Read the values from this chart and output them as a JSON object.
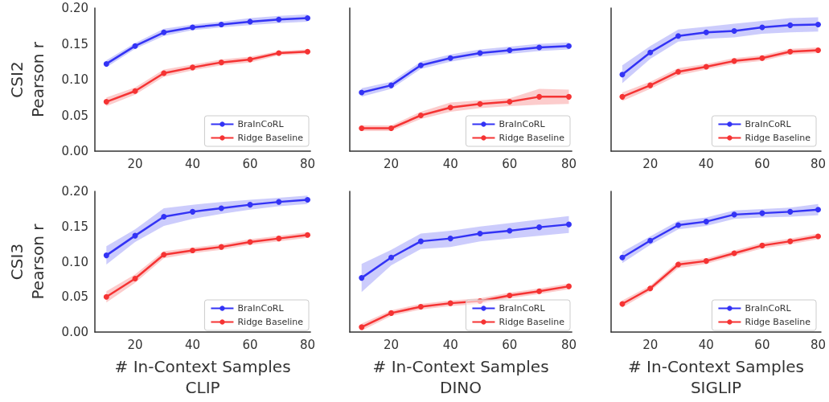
{
  "chart_data": [
    {
      "type": "line",
      "ylabel": "CSI2\nPearson r",
      "x": [
        10,
        20,
        30,
        40,
        50,
        60,
        70,
        80
      ],
      "xlim": [
        6,
        81
      ],
      "xticks": [
        20,
        40,
        60,
        80
      ],
      "ylim": [
        0,
        0.2
      ],
      "yticks": [
        {
          "value": 0,
          "label": "0.00"
        },
        0.05,
        {
          "value": 0.1,
          "label": "0.10"
        },
        0.15,
        {
          "value": 0.2,
          "label": "0.20"
        }
      ],
      "legend": "bottom right",
      "marker": "circle",
      "grid": false,
      "series": [
        {
          "name": "BraInCoRL",
          "color": "#3333f5",
          "values": [
            0.122,
            0.147,
            0.166,
            0.173,
            0.177,
            0.181,
            0.184,
            0.186
          ],
          "lower": [
            0.117,
            0.143,
            0.161,
            0.169,
            0.173,
            0.176,
            0.179,
            0.181
          ],
          "upper": [
            0.127,
            0.151,
            0.171,
            0.177,
            0.181,
            0.186,
            0.189,
            0.191
          ]
        },
        {
          "name": "Ridge Baseline",
          "color": "#f53333",
          "values": [
            0.069,
            0.084,
            0.109,
            0.117,
            0.124,
            0.128,
            0.137,
            0.139
          ],
          "lower": [
            0.063,
            0.079,
            0.104,
            0.113,
            0.12,
            0.124,
            0.134,
            0.136
          ],
          "upper": [
            0.075,
            0.089,
            0.114,
            0.121,
            0.128,
            0.132,
            0.14,
            0.142
          ]
        }
      ]
    },
    {
      "type": "line",
      "x": [
        10,
        20,
        30,
        40,
        50,
        60,
        70,
        80
      ],
      "xlim": [
        6,
        81
      ],
      "xticks": [
        20,
        40,
        60,
        80
      ],
      "ylim": [
        0,
        0.2
      ],
      "yticks": [
        0,
        0.05,
        0.1,
        0.15,
        0.2
      ],
      "tick_labels": "x",
      "legend": "bottom right",
      "marker": "circle",
      "grid": false,
      "series": [
        {
          "name": "BraInCoRL",
          "color": "#3333f5",
          "values": [
            0.082,
            0.092,
            0.12,
            0.13,
            0.137,
            0.141,
            0.145,
            0.147
          ],
          "lower": [
            0.076,
            0.087,
            0.115,
            0.125,
            0.132,
            0.136,
            0.14,
            0.142
          ],
          "upper": [
            0.088,
            0.097,
            0.125,
            0.135,
            0.142,
            0.146,
            0.15,
            0.152
          ]
        },
        {
          "name": "Ridge Baseline",
          "color": "#f53333",
          "values": [
            0.032,
            0.032,
            0.05,
            0.061,
            0.066,
            0.069,
            0.076,
            0.076
          ],
          "lower": [
            0.028,
            0.028,
            0.045,
            0.055,
            0.06,
            0.063,
            0.065,
            0.066
          ],
          "upper": [
            0.036,
            0.036,
            0.055,
            0.068,
            0.071,
            0.074,
            0.087,
            0.086
          ]
        }
      ]
    },
    {
      "type": "line",
      "x": [
        10,
        20,
        30,
        40,
        50,
        60,
        70,
        80
      ],
      "xlim": [
        6,
        81
      ],
      "xticks": [
        20,
        40,
        60,
        80
      ],
      "ylim": [
        0,
        0.2
      ],
      "yticks": [
        0,
        0.05,
        0.1,
        0.15,
        0.2
      ],
      "tick_labels": "x",
      "legend": "bottom right",
      "marker": "circle",
      "grid": false,
      "series": [
        {
          "name": "BraInCoRL",
          "color": "#3333f5",
          "values": [
            0.107,
            0.138,
            0.161,
            0.166,
            0.168,
            0.173,
            0.176,
            0.177
          ],
          "lower": [
            0.095,
            0.129,
            0.153,
            0.157,
            0.159,
            0.164,
            0.166,
            0.167
          ],
          "upper": [
            0.12,
            0.147,
            0.17,
            0.174,
            0.178,
            0.182,
            0.186,
            0.187
          ]
        },
        {
          "name": "Ridge Baseline",
          "color": "#f53333",
          "values": [
            0.076,
            0.092,
            0.111,
            0.118,
            0.126,
            0.13,
            0.139,
            0.141
          ],
          "lower": [
            0.07,
            0.087,
            0.106,
            0.114,
            0.122,
            0.126,
            0.135,
            0.137
          ],
          "upper": [
            0.082,
            0.097,
            0.116,
            0.122,
            0.13,
            0.134,
            0.143,
            0.145
          ]
        }
      ]
    },
    {
      "type": "line",
      "ylabel": "CSI3\nPearson r",
      "xlabel": "# In-Context Samples\nCLIP",
      "x": [
        10,
        20,
        30,
        40,
        50,
        60,
        70,
        80
      ],
      "xlim": [
        6,
        81
      ],
      "xticks": [
        20,
        40,
        60,
        80
      ],
      "ylim": [
        0,
        0.2
      ],
      "yticks": [
        {
          "value": 0,
          "label": "0.00"
        },
        0.05,
        {
          "value": 0.1,
          "label": "0.10"
        },
        0.15,
        {
          "value": 0.2,
          "label": "0.20"
        }
      ],
      "legend": "bottom right",
      "marker": "circle",
      "grid": false,
      "series": [
        {
          "name": "BraInCoRL",
          "color": "#3333f5",
          "values": [
            0.109,
            0.137,
            0.164,
            0.171,
            0.176,
            0.181,
            0.185,
            0.188
          ],
          "lower": [
            0.096,
            0.128,
            0.151,
            0.161,
            0.168,
            0.174,
            0.179,
            0.182
          ],
          "upper": [
            0.122,
            0.146,
            0.176,
            0.181,
            0.185,
            0.188,
            0.191,
            0.194
          ]
        },
        {
          "name": "Ridge Baseline",
          "color": "#f53333",
          "values": [
            0.05,
            0.076,
            0.11,
            0.116,
            0.121,
            0.128,
            0.133,
            0.138
          ],
          "lower": [
            0.042,
            0.07,
            0.105,
            0.112,
            0.117,
            0.124,
            0.129,
            0.134
          ],
          "upper": [
            0.058,
            0.082,
            0.115,
            0.12,
            0.125,
            0.132,
            0.137,
            0.142
          ]
        }
      ]
    },
    {
      "type": "line",
      "xlabel": "# In-Context Samples\nDINO",
      "x": [
        10,
        20,
        30,
        40,
        50,
        60,
        70,
        80
      ],
      "xlim": [
        6,
        81
      ],
      "xticks": [
        20,
        40,
        60,
        80
      ],
      "ylim": [
        0,
        0.2
      ],
      "yticks": [
        0,
        0.05,
        0.1,
        0.15,
        0.2
      ],
      "tick_labels": "x",
      "legend": "bottom right",
      "marker": "circle",
      "grid": false,
      "series": [
        {
          "name": "BraInCoRL",
          "color": "#3333f5",
          "values": [
            0.077,
            0.106,
            0.129,
            0.133,
            0.14,
            0.144,
            0.149,
            0.153
          ],
          "lower": [
            0.057,
            0.095,
            0.118,
            0.121,
            0.129,
            0.133,
            0.137,
            0.141
          ],
          "upper": [
            0.097,
            0.117,
            0.14,
            0.144,
            0.15,
            0.155,
            0.16,
            0.165
          ]
        },
        {
          "name": "Ridge Baseline",
          "color": "#f53333",
          "values": [
            0.007,
            0.027,
            0.036,
            0.041,
            0.044,
            0.052,
            0.058,
            0.065
          ],
          "lower": [
            0.002,
            0.023,
            0.032,
            0.037,
            0.04,
            0.048,
            0.054,
            0.061
          ],
          "upper": [
            0.012,
            0.031,
            0.04,
            0.045,
            0.048,
            0.056,
            0.062,
            0.069
          ]
        }
      ]
    },
    {
      "type": "line",
      "xlabel": "# In-Context Samples\nSIGLIP",
      "x": [
        10,
        20,
        30,
        40,
        50,
        60,
        70,
        80
      ],
      "xlim": [
        6,
        81
      ],
      "xticks": [
        20,
        40,
        60,
        80
      ],
      "ylim": [
        0,
        0.2
      ],
      "yticks": [
        0,
        0.05,
        0.1,
        0.15,
        0.2
      ],
      "tick_labels": "x",
      "legend": "bottom right",
      "marker": "circle",
      "grid": false,
      "series": [
        {
          "name": "BraInCoRL",
          "color": "#3333f5",
          "values": [
            0.106,
            0.13,
            0.152,
            0.157,
            0.167,
            0.169,
            0.171,
            0.174
          ],
          "lower": [
            0.098,
            0.124,
            0.146,
            0.151,
            0.161,
            0.163,
            0.164,
            0.166
          ],
          "upper": [
            0.114,
            0.136,
            0.158,
            0.163,
            0.173,
            0.175,
            0.177,
            0.182
          ]
        },
        {
          "name": "Ridge Baseline",
          "color": "#f53333",
          "values": [
            0.04,
            0.062,
            0.096,
            0.101,
            0.112,
            0.123,
            0.129,
            0.136
          ],
          "lower": [
            0.035,
            0.058,
            0.091,
            0.097,
            0.108,
            0.119,
            0.125,
            0.132
          ],
          "upper": [
            0.045,
            0.066,
            0.101,
            0.105,
            0.116,
            0.127,
            0.133,
            0.14
          ]
        }
      ]
    }
  ]
}
